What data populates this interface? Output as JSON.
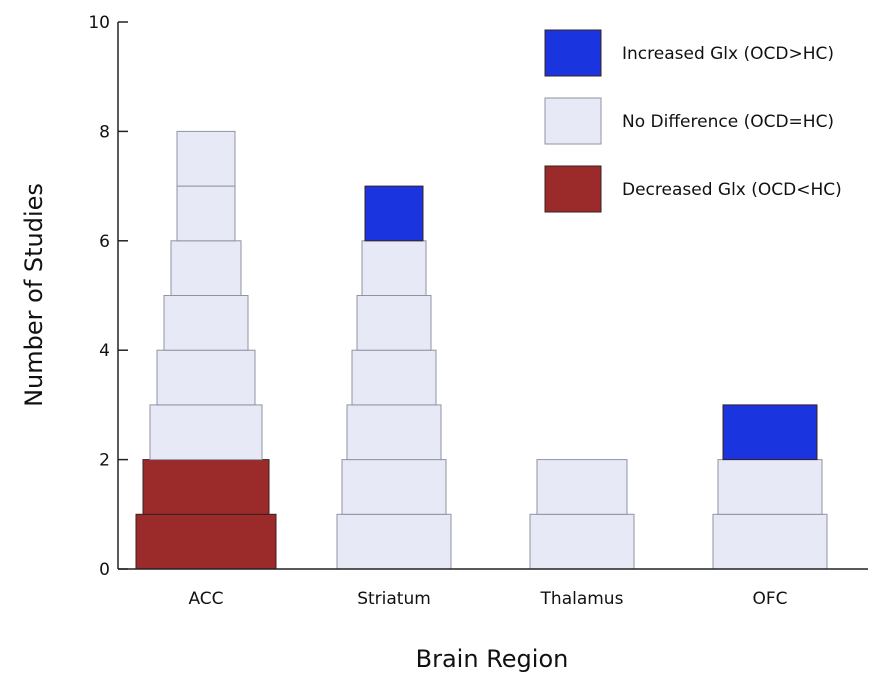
{
  "chart_data": {
    "type": "bar",
    "xlabel": "Brain Region",
    "ylabel": "Number of Studies",
    "ylim": [
      0,
      10
    ],
    "yticks": [
      0,
      2,
      4,
      6,
      8,
      10
    ],
    "categories": [
      "ACC",
      "Striatum",
      "Thalamus",
      "OFC"
    ],
    "series": [
      {
        "name": "Increased Glx (OCD>HC)",
        "color": "#1a35e0",
        "values": [
          0,
          1,
          0,
          1
        ]
      },
      {
        "name": "No Difference (OCD=HC)",
        "color": "#e8e9f6",
        "values": [
          6,
          6,
          2,
          2
        ]
      },
      {
        "name": "Decreased Glx (OCD<HC)",
        "color": "#9b2b2b",
        "values": [
          2,
          0,
          0,
          0
        ]
      }
    ],
    "stack_order": [
      "Decreased Glx (OCD<HC)",
      "No Difference (OCD=HC)",
      "Increased Glx (OCD>HC)"
    ],
    "legend_position": "top-right",
    "grid": false
  }
}
